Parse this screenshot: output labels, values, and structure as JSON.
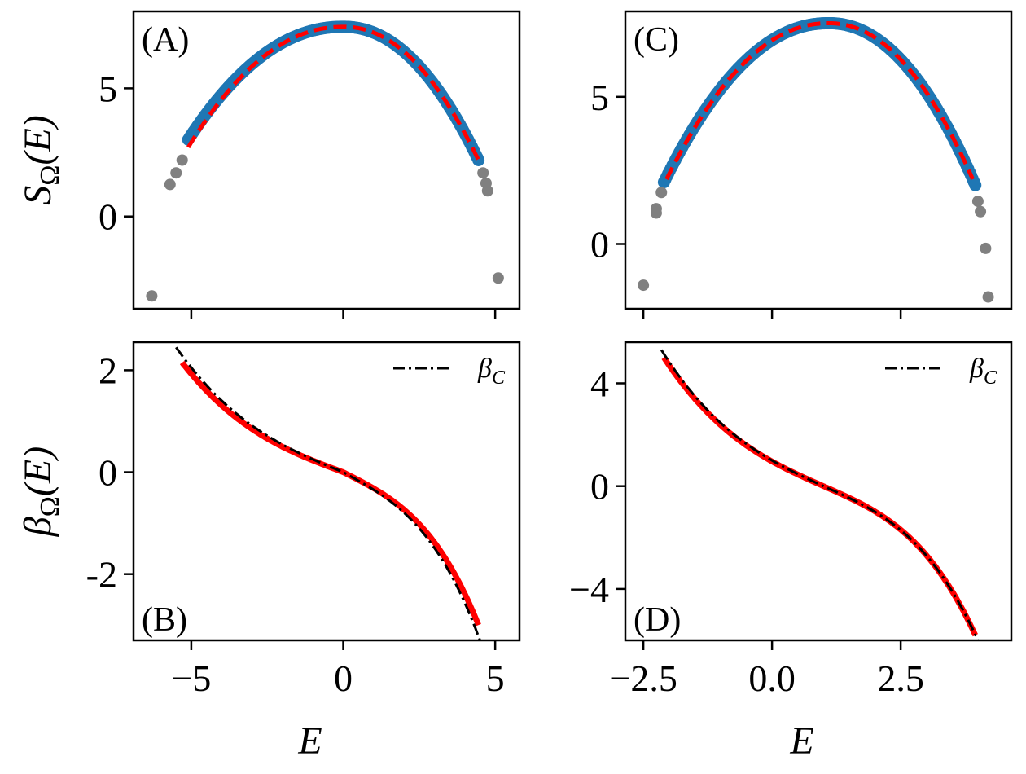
{
  "colors": {
    "microcanonical": "#1f77b4",
    "discarded": "#808080",
    "fit": "#ff0000",
    "canonical": "#000000"
  },
  "chart_data": [
    {
      "panel": "A",
      "label": "(A)",
      "type": "scatter",
      "ylabel": "S",
      "ylabel_sub": "Ω",
      "ylabel_arg": "(E)",
      "xlabel": "",
      "xlim": [
        -6.9,
        5.8
      ],
      "ylim": [
        -3.6,
        8.0
      ],
      "xticks": [
        -5,
        0,
        5
      ],
      "xtick_labels": [
        "",
        "",
        ""
      ],
      "yticks": [
        0,
        5
      ],
      "ytick_labels": [
        "0",
        "5"
      ],
      "series": [
        {
          "kind": "dense-points",
          "color_key": "microcanonical",
          "x_range": [
            -5.1,
            4.45
          ],
          "peak": 7.4,
          "left_end": 3.0,
          "right_end": 2.2
        },
        {
          "kind": "dashed-fit",
          "color_key": "fit",
          "x_range": [
            -5.1,
            4.45
          ],
          "peak": 7.4,
          "left_end": 2.7,
          "right_end": 2.2
        },
        {
          "kind": "outliers",
          "color_key": "discarded",
          "x": [
            -6.3,
            -5.7,
            -5.5,
            -5.3,
            4.6,
            4.7,
            4.75,
            5.1
          ],
          "y": [
            -3.1,
            1.25,
            1.7,
            2.2,
            1.7,
            1.3,
            1.0,
            -2.4
          ]
        }
      ]
    },
    {
      "panel": "C",
      "label": "(C)",
      "type": "scatter",
      "ylabel": "",
      "xlabel": "",
      "xlim": [
        -2.85,
        4.65
      ],
      "ylim": [
        -2.2,
        7.9
      ],
      "xticks": [
        -2.5,
        0,
        2.5
      ],
      "xtick_labels": [
        "",
        "",
        ""
      ],
      "yticks": [
        0,
        5
      ],
      "ytick_labels": [
        "0",
        "5"
      ],
      "series": [
        {
          "kind": "dense-points",
          "color_key": "microcanonical",
          "x_range": [
            -2.1,
            3.95
          ],
          "peak": 7.5,
          "left_end": 2.1,
          "right_end": 2.0
        },
        {
          "kind": "dashed-fit",
          "color_key": "fit",
          "x_range": [
            -2.05,
            3.9
          ],
          "peak": 7.5,
          "left_end": 2.2,
          "right_end": 2.2
        },
        {
          "kind": "outliers",
          "color_key": "discarded",
          "x": [
            -2.5,
            -2.25,
            -2.25,
            -2.15,
            4.0,
            4.05,
            4.15,
            4.2
          ],
          "y": [
            -1.4,
            1.05,
            1.2,
            1.75,
            1.45,
            1.1,
            -0.15,
            -1.8
          ]
        }
      ]
    },
    {
      "panel": "B",
      "label": "(B)",
      "type": "line",
      "ylabel": "β",
      "ylabel_sub": "Ω",
      "ylabel_arg": "(E)",
      "xlabel": "E",
      "xlim": [
        -6.9,
        5.8
      ],
      "ylim": [
        -3.3,
        2.55
      ],
      "xticks": [
        -5,
        0,
        5
      ],
      "xtick_labels": [
        "−5",
        "0",
        "5"
      ],
      "yticks": [
        -2,
        0,
        2
      ],
      "ytick_labels": [
        "-2",
        "0",
        "2"
      ],
      "legend": {
        "label": "β",
        "label_sub": "C",
        "placement": "top-right"
      },
      "series": [
        {
          "kind": "fit-line",
          "color_key": "fit",
          "x_range": [
            -5.3,
            4.45
          ],
          "y_start": 2.15,
          "y_end": -3.0
        },
        {
          "kind": "canonical-dashdot",
          "color_key": "canonical",
          "x_range": [
            -5.5,
            4.5
          ],
          "y_start": 2.45,
          "y_end": -3.3
        }
      ]
    },
    {
      "panel": "D",
      "label": "(D)",
      "type": "line",
      "ylabel": "",
      "xlabel": "E",
      "xlim": [
        -2.85,
        4.65
      ],
      "ylim": [
        -6.0,
        5.6
      ],
      "xticks": [
        -2.5,
        0,
        2.5
      ],
      "xtick_labels": [
        "−2.5",
        "0.0",
        "2.5"
      ],
      "yticks": [
        -4,
        0,
        4
      ],
      "ytick_labels": [
        "−4",
        "0",
        "4"
      ],
      "legend": {
        "label": "β",
        "label_sub": "C",
        "placement": "top-right"
      },
      "series": [
        {
          "kind": "fit-line",
          "color_key": "fit",
          "x_range": [
            -2.1,
            3.95
          ],
          "y_start": 5.0,
          "y_end": -5.8
        },
        {
          "kind": "canonical-dashdot",
          "color_key": "canonical",
          "x_range": [
            -2.15,
            4.0
          ],
          "y_start": 5.3,
          "y_end": -6.0
        }
      ]
    }
  ]
}
